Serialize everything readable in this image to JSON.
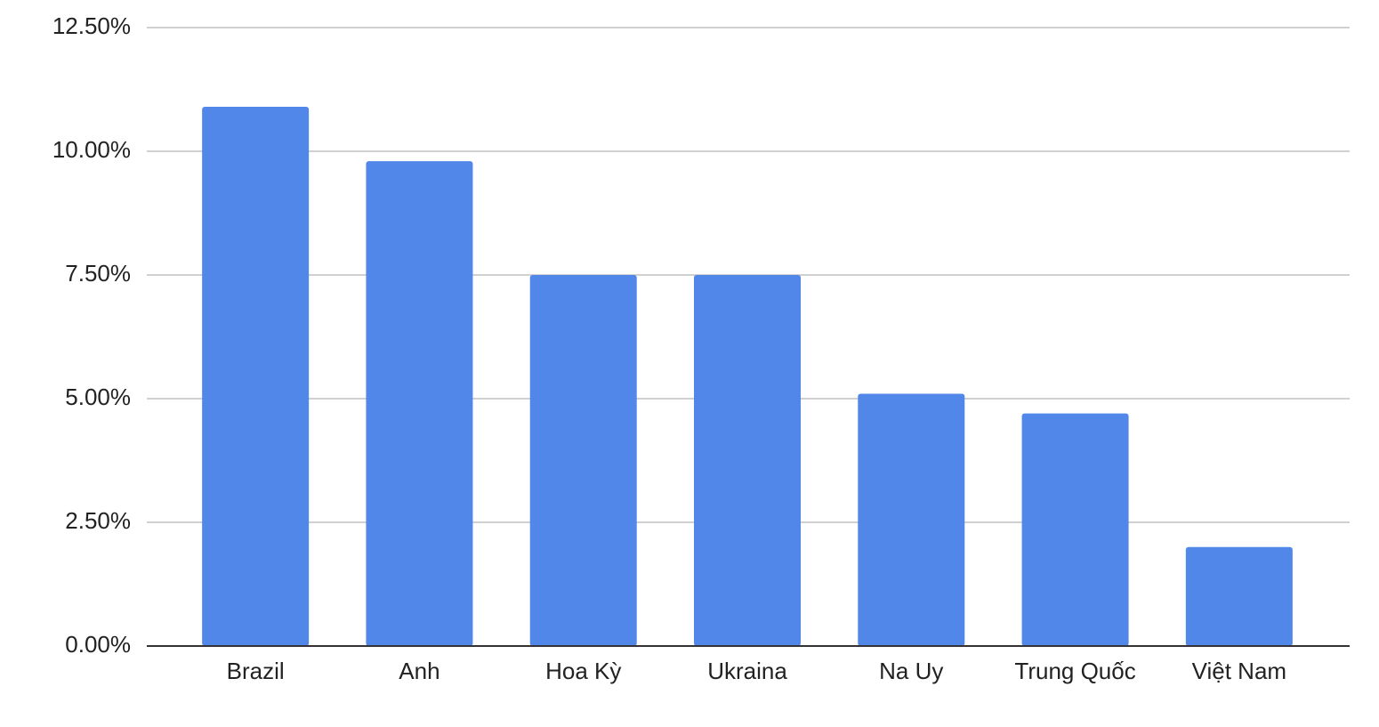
{
  "chart_data": {
    "type": "bar",
    "categories": [
      "Brazil",
      "Anh",
      "Hoa Kỳ",
      "Ukraina",
      "Na Uy",
      "Trung Quốc",
      "Việt Nam"
    ],
    "values": [
      10.9,
      9.8,
      7.5,
      7.5,
      5.1,
      4.7,
      2.0
    ],
    "color": "#5087e8",
    "ylim": [
      0,
      12.5
    ],
    "yticks": [
      {
        "value": 0,
        "label": "0.00%"
      },
      {
        "value": 2.5,
        "label": "2.50%"
      },
      {
        "value": 5,
        "label": "5.00%"
      },
      {
        "value": 7.5,
        "label": "7.50%"
      },
      {
        "value": 10,
        "label": "10.00%"
      },
      {
        "value": 12.5,
        "label": "12.50%"
      }
    ],
    "grid": true
  }
}
